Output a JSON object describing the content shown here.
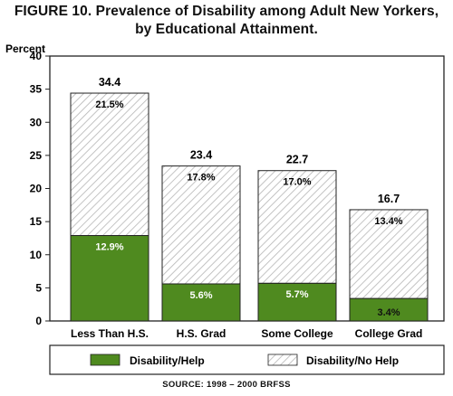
{
  "chart_data": {
    "type": "bar",
    "stacked": true,
    "title_line1": "FIGURE 10. Prevalence of Disability among Adult New Yorkers,",
    "title_line2": "by Educational Attainment.",
    "ylabel": "Percent",
    "xlabel": "",
    "ylim": [
      0,
      40
    ],
    "yticks": [
      0,
      5,
      10,
      15,
      20,
      25,
      30,
      35,
      40
    ],
    "categories": [
      "Less Than H.S.",
      "H.S. Grad",
      "Some College",
      "College Grad"
    ],
    "totals": [
      34.4,
      23.4,
      22.7,
      16.7
    ],
    "total_labels": [
      "34.4",
      "23.4",
      "22.7",
      "16.7"
    ],
    "series": [
      {
        "name": "Disability/Help",
        "values": [
          12.9,
          5.6,
          5.7,
          3.4
        ],
        "labels": [
          "12.9%",
          "5.6%",
          "5.7%",
          "3.4%"
        ],
        "color": "#4f8a1f"
      },
      {
        "name": "Disability/No Help",
        "values": [
          21.5,
          17.8,
          17.0,
          13.4
        ],
        "labels": [
          "21.5%",
          "17.8%",
          "17.0%",
          "13.4%"
        ],
        "color": "#bcbcbc"
      }
    ],
    "legend_position": "bottom",
    "grid": false
  },
  "source": "SOURCE:   1998 – 2000  BRFSS"
}
